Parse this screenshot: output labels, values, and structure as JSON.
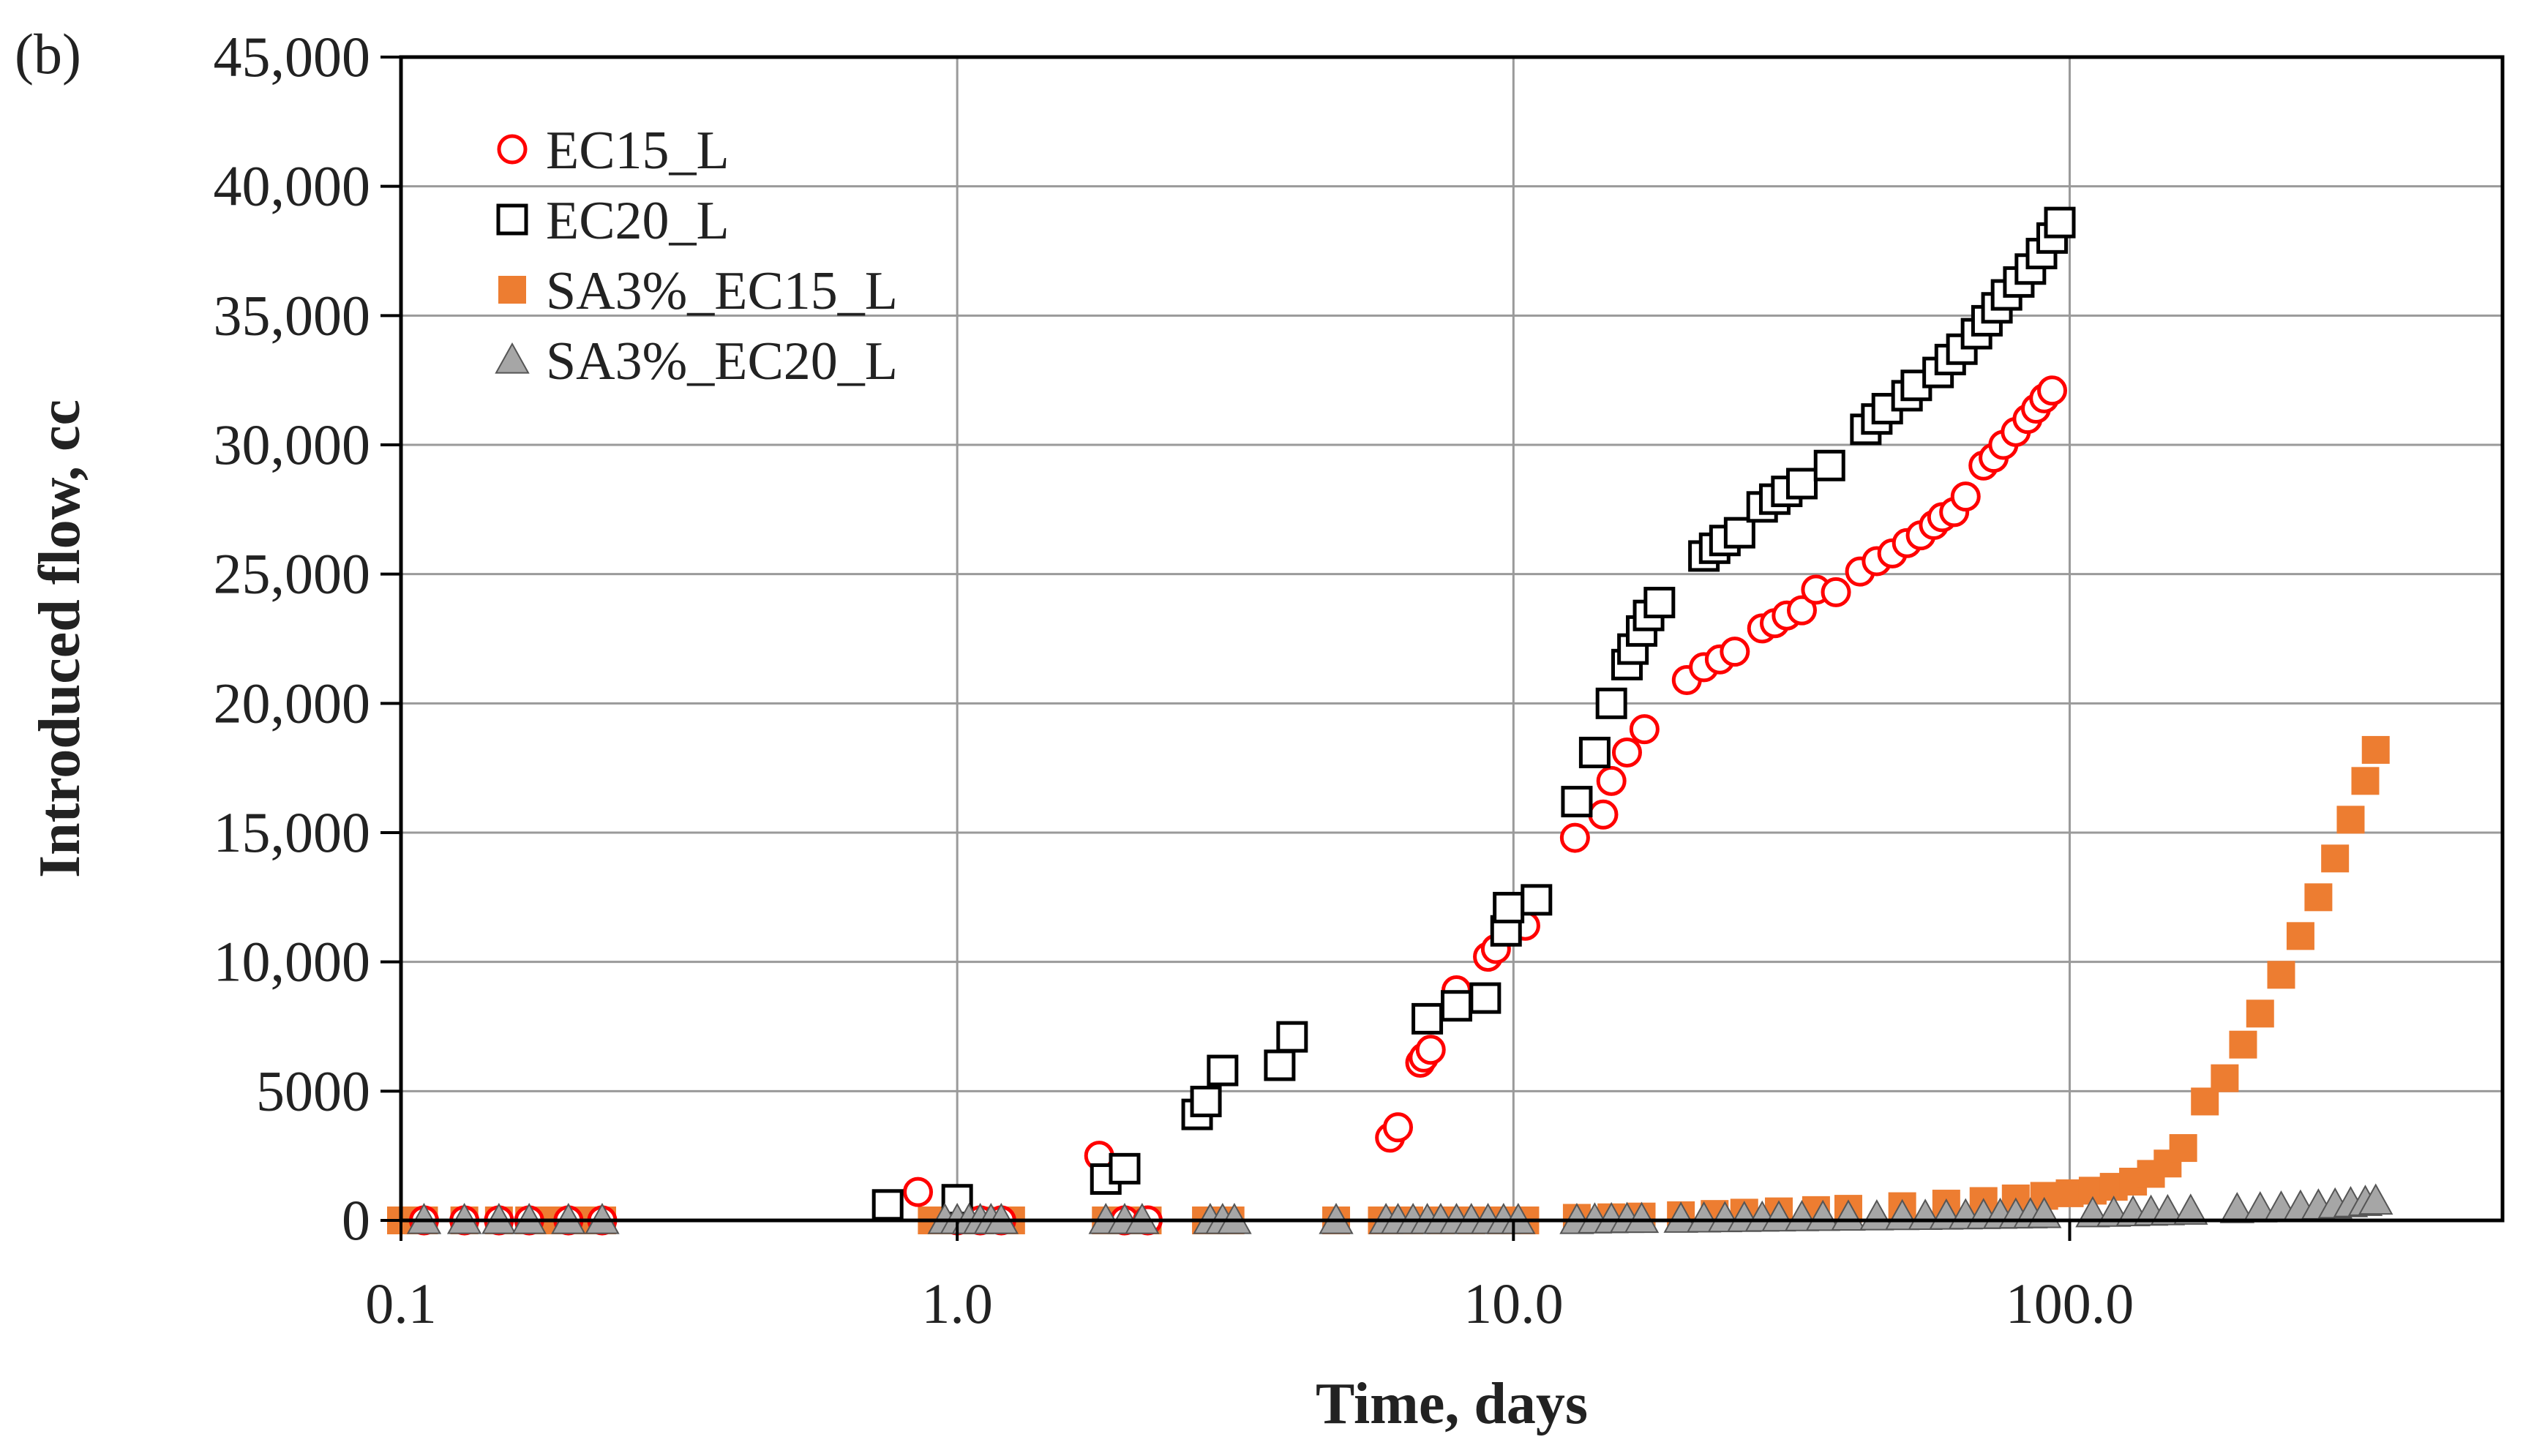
{
  "panel_label": "(b)",
  "chart_data": {
    "type": "scatter",
    "title": "",
    "xlabel": "Time, days",
    "ylabel": "Introduced flow, cc",
    "x_scale": "log",
    "xlim": [
      0.1,
      600
    ],
    "ylim": [
      0,
      45000
    ],
    "x_ticks": [
      0.1,
      1,
      10,
      100
    ],
    "x_tick_labels": [
      "0.1",
      "1.0",
      "10.0",
      "100.0"
    ],
    "y_ticks": [
      0,
      5000,
      10000,
      15000,
      20000,
      25000,
      30000,
      35000,
      40000,
      45000
    ],
    "y_tick_labels": [
      "0",
      "5000",
      "10,000",
      "15,000",
      "20,000",
      "25,000",
      "30,000",
      "35,000",
      "40,000",
      "45,000"
    ],
    "grid": true,
    "legend_position": "top-left",
    "series": [
      {
        "name": "EC15_L",
        "marker": "open-circle",
        "color": "#ff0000",
        "points": [
          [
            0.11,
            0
          ],
          [
            0.13,
            0
          ],
          [
            0.15,
            0
          ],
          [
            0.17,
            0
          ],
          [
            0.2,
            0
          ],
          [
            0.23,
            0
          ],
          [
            0.85,
            1100
          ],
          [
            1.0,
            0
          ],
          [
            1.1,
            0
          ],
          [
            1.2,
            0
          ],
          [
            1.8,
            2500
          ],
          [
            2.0,
            0
          ],
          [
            2.2,
            0
          ],
          [
            6.0,
            3200
          ],
          [
            6.2,
            3600
          ],
          [
            6.8,
            6100
          ],
          [
            6.9,
            6300
          ],
          [
            7.1,
            6600
          ],
          [
            7.9,
            8900
          ],
          [
            9.0,
            10200
          ],
          [
            9.3,
            10500
          ],
          [
            10.5,
            11400
          ],
          [
            12.9,
            14800
          ],
          [
            14.5,
            15700
          ],
          [
            15.0,
            17000
          ],
          [
            16.0,
            18100
          ],
          [
            17.2,
            19000
          ],
          [
            20.5,
            20900
          ],
          [
            22.0,
            21400
          ],
          [
            23.5,
            21700
          ],
          [
            25.0,
            22000
          ],
          [
            28.0,
            22900
          ],
          [
            29.5,
            23100
          ],
          [
            31.0,
            23400
          ],
          [
            33.0,
            23600
          ],
          [
            35.0,
            24400
          ],
          [
            38.0,
            24300
          ],
          [
            42.0,
            25100
          ],
          [
            45.0,
            25500
          ],
          [
            48.0,
            25800
          ],
          [
            51.0,
            26200
          ],
          [
            54.0,
            26500
          ],
          [
            57.0,
            26900
          ],
          [
            59.0,
            27200
          ],
          [
            62.0,
            27400
          ],
          [
            65.0,
            28000
          ],
          [
            70.0,
            29200
          ],
          [
            73.0,
            29500
          ],
          [
            76.0,
            30000
          ],
          [
            80.0,
            30500
          ],
          [
            84.0,
            31000
          ],
          [
            87.0,
            31400
          ],
          [
            90.0,
            31800
          ],
          [
            93.0,
            32100
          ]
        ]
      },
      {
        "name": "EC20_L",
        "marker": "open-square",
        "color": "#000000",
        "points": [
          [
            0.75,
            600
          ],
          [
            1.0,
            800
          ],
          [
            1.85,
            1600
          ],
          [
            2.0,
            2000
          ],
          [
            2.7,
            4100
          ],
          [
            2.8,
            4600
          ],
          [
            3.0,
            5800
          ],
          [
            3.8,
            6000
          ],
          [
            4.0,
            7100
          ],
          [
            7.0,
            7800
          ],
          [
            7.9,
            8300
          ],
          [
            8.9,
            8600
          ],
          [
            9.7,
            11200
          ],
          [
            9.8,
            12100
          ],
          [
            11.0,
            12400
          ],
          [
            13.0,
            16200
          ],
          [
            14.0,
            18100
          ],
          [
            15.0,
            20000
          ],
          [
            16.0,
            21500
          ],
          [
            16.4,
            22100
          ],
          [
            17.0,
            22800
          ],
          [
            17.5,
            23400
          ],
          [
            18.3,
            23900
          ],
          [
            22.0,
            25700
          ],
          [
            23.0,
            26000
          ],
          [
            24.0,
            26300
          ],
          [
            25.5,
            26600
          ],
          [
            28.0,
            27600
          ],
          [
            29.5,
            27900
          ],
          [
            31.0,
            28200
          ],
          [
            33.0,
            28500
          ],
          [
            37.0,
            29200
          ],
          [
            43.0,
            30600
          ],
          [
            45.0,
            31000
          ],
          [
            47.0,
            31400
          ],
          [
            51.0,
            31900
          ],
          [
            53.0,
            32300
          ],
          [
            58.0,
            32800
          ],
          [
            61.0,
            33300
          ],
          [
            64.0,
            33700
          ],
          [
            68.0,
            34300
          ],
          [
            71.0,
            34800
          ],
          [
            74.0,
            35300
          ],
          [
            77.0,
            35800
          ],
          [
            81.0,
            36300
          ],
          [
            85.0,
            36800
          ],
          [
            89.0,
            37400
          ],
          [
            93.0,
            38000
          ],
          [
            96.0,
            38600
          ]
        ]
      },
      {
        "name": "SA3%_EC15_L",
        "marker": "filled-square",
        "color": "#ed7d31",
        "points": [
          [
            0.1,
            0
          ],
          [
            0.11,
            0
          ],
          [
            0.13,
            0
          ],
          [
            0.15,
            0
          ],
          [
            0.17,
            0
          ],
          [
            0.19,
            0
          ],
          [
            0.21,
            0
          ],
          [
            0.23,
            0
          ],
          [
            0.9,
            0
          ],
          [
            1.0,
            0
          ],
          [
            1.1,
            0
          ],
          [
            1.25,
            0
          ],
          [
            1.85,
            0
          ],
          [
            2.0,
            0
          ],
          [
            2.2,
            0
          ],
          [
            2.8,
            0
          ],
          [
            3.1,
            0
          ],
          [
            4.8,
            0
          ],
          [
            5.8,
            0
          ],
          [
            6.5,
            0
          ],
          [
            7.4,
            0
          ],
          [
            8.4,
            0
          ],
          [
            9.5,
            0
          ],
          [
            10.5,
            0
          ],
          [
            13,
            100
          ],
          [
            15,
            120
          ],
          [
            17,
            150
          ],
          [
            20,
            200
          ],
          [
            23,
            250
          ],
          [
            26,
            300
          ],
          [
            30,
            350
          ],
          [
            35,
            400
          ],
          [
            40,
            450
          ],
          [
            50,
            550
          ],
          [
            60,
            650
          ],
          [
            70,
            750
          ],
          [
            80,
            850
          ],
          [
            90,
            950
          ],
          [
            100,
            1050
          ],
          [
            110,
            1150
          ],
          [
            120,
            1300
          ],
          [
            130,
            1500
          ],
          [
            140,
            1800
          ],
          [
            150,
            2200
          ],
          [
            160,
            2800
          ],
          [
            175,
            4600
          ],
          [
            190,
            5500
          ],
          [
            205,
            6800
          ],
          [
            220,
            8000
          ],
          [
            240,
            9500
          ],
          [
            260,
            11000
          ],
          [
            280,
            12500
          ],
          [
            300,
            14000
          ],
          [
            320,
            15500
          ],
          [
            340,
            17000
          ],
          [
            355,
            18200
          ]
        ]
      },
      {
        "name": "SA3%_EC20_L",
        "marker": "filled-triangle",
        "color": "#a6a6a6",
        "points": [
          [
            0.11,
            0
          ],
          [
            0.13,
            0
          ],
          [
            0.15,
            0
          ],
          [
            0.17,
            0
          ],
          [
            0.2,
            0
          ],
          [
            0.23,
            0
          ],
          [
            0.95,
            0
          ],
          [
            1.0,
            0
          ],
          [
            1.05,
            0
          ],
          [
            1.1,
            0
          ],
          [
            1.15,
            0
          ],
          [
            1.2,
            0
          ],
          [
            1.85,
            0
          ],
          [
            2.0,
            0
          ],
          [
            2.15,
            0
          ],
          [
            2.85,
            0
          ],
          [
            3.0,
            0
          ],
          [
            3.15,
            0
          ],
          [
            4.8,
            0
          ],
          [
            5.9,
            0
          ],
          [
            6.2,
            0
          ],
          [
            6.6,
            0
          ],
          [
            7.0,
            0
          ],
          [
            7.4,
            0
          ],
          [
            7.9,
            0
          ],
          [
            8.4,
            0
          ],
          [
            9.0,
            0
          ],
          [
            9.6,
            0
          ],
          [
            10.2,
            0
          ],
          [
            13,
            0
          ],
          [
            14,
            20
          ],
          [
            15,
            30
          ],
          [
            16,
            40
          ],
          [
            17,
            40
          ],
          [
            20,
            50
          ],
          [
            22,
            60
          ],
          [
            24,
            70
          ],
          [
            26,
            80
          ],
          [
            28,
            90
          ],
          [
            30,
            100
          ],
          [
            33,
            110
          ],
          [
            36,
            120
          ],
          [
            40,
            130
          ],
          [
            45,
            140
          ],
          [
            50,
            150
          ],
          [
            55,
            160
          ],
          [
            60,
            170
          ],
          [
            65,
            180
          ],
          [
            70,
            190
          ],
          [
            75,
            200
          ],
          [
            80,
            210
          ],
          [
            85,
            220
          ],
          [
            90,
            230
          ],
          [
            110,
            260
          ],
          [
            120,
            280
          ],
          [
            130,
            300
          ],
          [
            140,
            320
          ],
          [
            150,
            340
          ],
          [
            165,
            360
          ],
          [
            200,
            420
          ],
          [
            220,
            450
          ],
          [
            240,
            480
          ],
          [
            260,
            520
          ],
          [
            280,
            560
          ],
          [
            300,
            600
          ],
          [
            320,
            650
          ],
          [
            340,
            700
          ],
          [
            355,
            750
          ]
        ]
      }
    ]
  }
}
